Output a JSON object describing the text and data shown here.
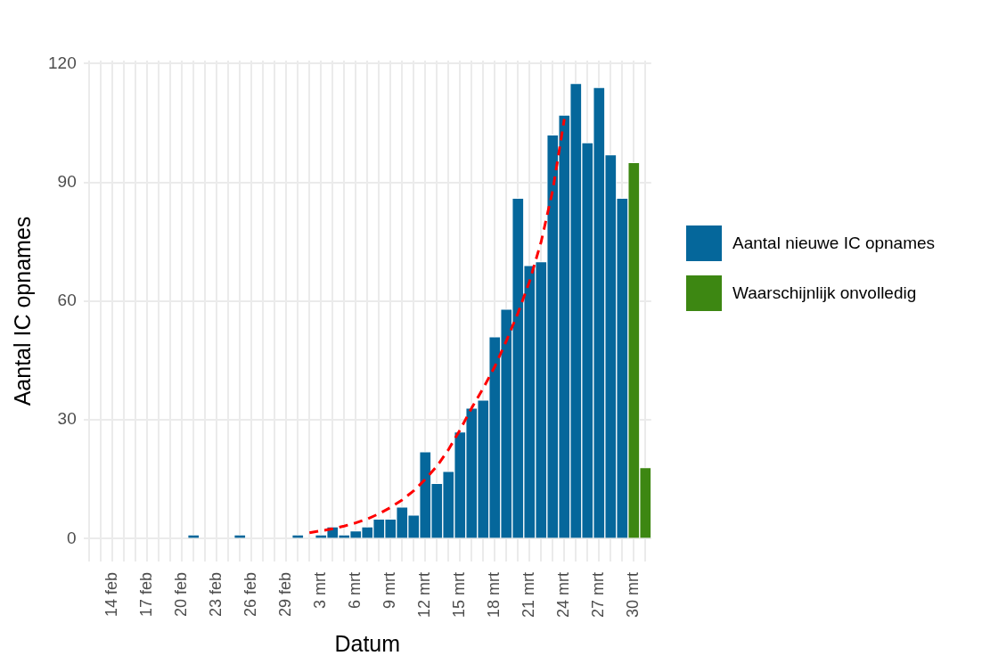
{
  "chart_data": {
    "type": "bar",
    "xlabel": "Datum",
    "ylabel": "Aantal IC opnames",
    "categories": [
      null,
      null,
      "14 feb",
      null,
      null,
      "17 feb",
      null,
      null,
      "20 feb",
      null,
      null,
      "23 feb",
      null,
      null,
      "26 feb",
      null,
      null,
      "29 feb",
      null,
      null,
      "3 mrt",
      null,
      null,
      "6 mrt",
      null,
      null,
      "9 mrt",
      null,
      null,
      "12 mrt",
      null,
      null,
      "15 mrt",
      null,
      null,
      "18 mrt",
      null,
      null,
      "21 mrt",
      null,
      null,
      "24 mrt",
      null,
      null,
      "27 mrt",
      null,
      null,
      "30 mrt",
      null
    ],
    "series": [
      {
        "name": "Aantal nieuwe IC opnames",
        "color": "#05679b",
        "values": [
          0,
          0,
          0,
          0,
          0,
          0,
          0,
          0,
          0,
          1,
          0,
          0,
          0,
          1,
          0,
          0,
          0,
          0,
          1,
          0,
          1,
          3,
          1,
          2,
          3,
          5,
          5,
          8,
          6,
          22,
          14,
          17,
          27,
          33,
          35,
          51,
          58,
          86,
          69,
          70,
          102,
          107,
          115,
          100,
          114,
          97,
          86,
          null,
          null
        ]
      },
      {
        "name": "Waarschijnlijk onvolledig",
        "color": "#3d8712",
        "values": [
          null,
          null,
          null,
          null,
          null,
          null,
          null,
          null,
          null,
          null,
          null,
          null,
          null,
          null,
          null,
          null,
          null,
          null,
          null,
          null,
          null,
          null,
          null,
          null,
          null,
          null,
          null,
          null,
          null,
          null,
          null,
          null,
          null,
          null,
          null,
          null,
          null,
          null,
          null,
          null,
          null,
          null,
          null,
          null,
          null,
          null,
          null,
          95,
          18
        ]
      },
      {
        "type": "line",
        "color": "#ff0000",
        "line_style": "dashed",
        "marker": "none",
        "values": [
          null,
          null,
          null,
          null,
          null,
          null,
          null,
          null,
          null,
          null,
          null,
          null,
          null,
          null,
          null,
          null,
          null,
          null,
          null,
          1.5,
          2,
          2.5,
          3.2,
          4,
          5,
          6.3,
          7.9,
          9.8,
          12.1,
          15,
          18.3,
          22.5,
          27.5,
          33,
          38,
          43.5,
          50,
          57,
          65,
          75,
          88,
          106,
          null,
          null,
          null,
          null,
          null,
          null,
          null
        ]
      }
    ],
    "stacked": true,
    "ylim": [
      -5.75,
      120.75
    ],
    "yticks": [
      0,
      30,
      60,
      90,
      120
    ],
    "grid": true,
    "legend": "right"
  }
}
